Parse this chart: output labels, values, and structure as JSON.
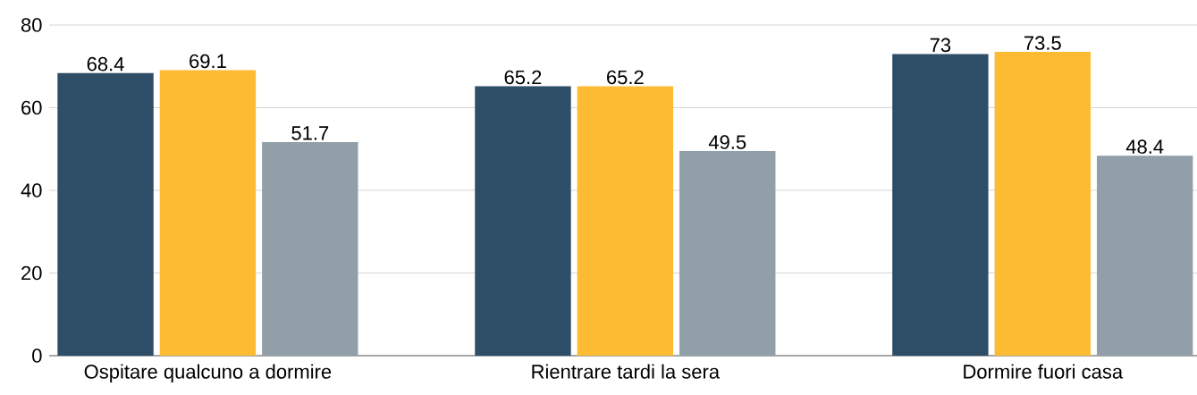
{
  "chart_data": {
    "type": "bar",
    "categories": [
      "Ospitare qualcuno a dormire",
      "Rientrare tardi la sera",
      "Dormire fuori casa"
    ],
    "series": [
      {
        "color": "#2e4d66",
        "values": [
          68.4,
          65.2,
          73
        ]
      },
      {
        "color": "#fbbb33",
        "values": [
          69.1,
          65.2,
          73.5
        ]
      },
      {
        "color": "#919fa9",
        "values": [
          51.7,
          49.5,
          48.4
        ]
      }
    ],
    "ylim": [
      0,
      80
    ],
    "yticks": [
      0,
      20,
      40,
      60,
      80
    ],
    "grid": "y",
    "data_labels": true
  }
}
